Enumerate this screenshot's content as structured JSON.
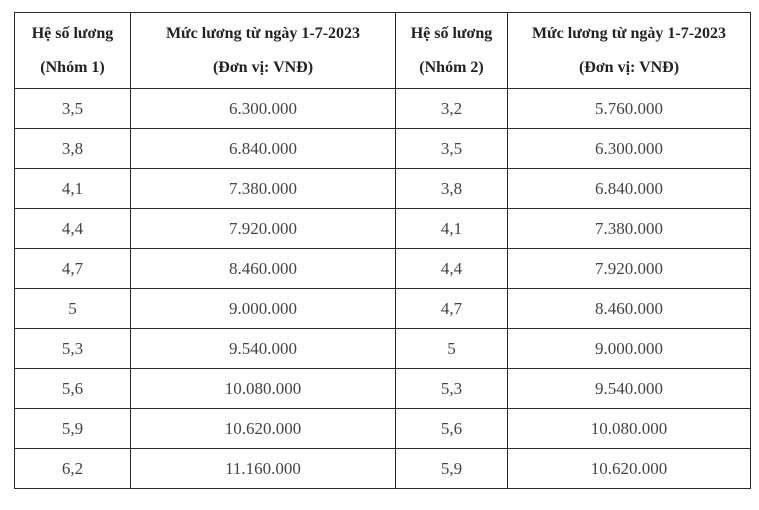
{
  "table": {
    "colors": {
      "border": "#2b2b2b",
      "header_text": "#222222",
      "cell_text": "#444444",
      "background": "#ffffff"
    },
    "columns": [
      {
        "line1": "Hệ số lương",
        "line2": "(Nhóm 1)"
      },
      {
        "line1": "Mức lương từ ngày 1-7-2023",
        "line2": "(Đơn vị: VNĐ)"
      },
      {
        "line1": "Hệ số lương",
        "line2": "(Nhóm 2)"
      },
      {
        "line1": "Mức lương từ ngày 1-7-2023",
        "line2": "(Đơn vị: VNĐ)"
      }
    ],
    "rows": [
      [
        "3,5",
        "6.300.000",
        "3,2",
        "5.760.000"
      ],
      [
        "3,8",
        "6.840.000",
        "3,5",
        "6.300.000"
      ],
      [
        "4,1",
        "7.380.000",
        "3,8",
        "6.840.000"
      ],
      [
        "4,4",
        "7.920.000",
        "4,1",
        "7.380.000"
      ],
      [
        "4,7",
        "8.460.000",
        "4,4",
        "7.920.000"
      ],
      [
        "5",
        "9.000.000",
        "4,7",
        "8.460.000"
      ],
      [
        "5,3",
        "9.540.000",
        "5",
        "9.000.000"
      ],
      [
        "5,6",
        "10.080.000",
        "5,3",
        "9.540.000"
      ],
      [
        "5,9",
        "10.620.000",
        "5,6",
        "10.080.000"
      ],
      [
        "6,2",
        "11.160.000",
        "5,9",
        "10.620.000"
      ]
    ]
  }
}
